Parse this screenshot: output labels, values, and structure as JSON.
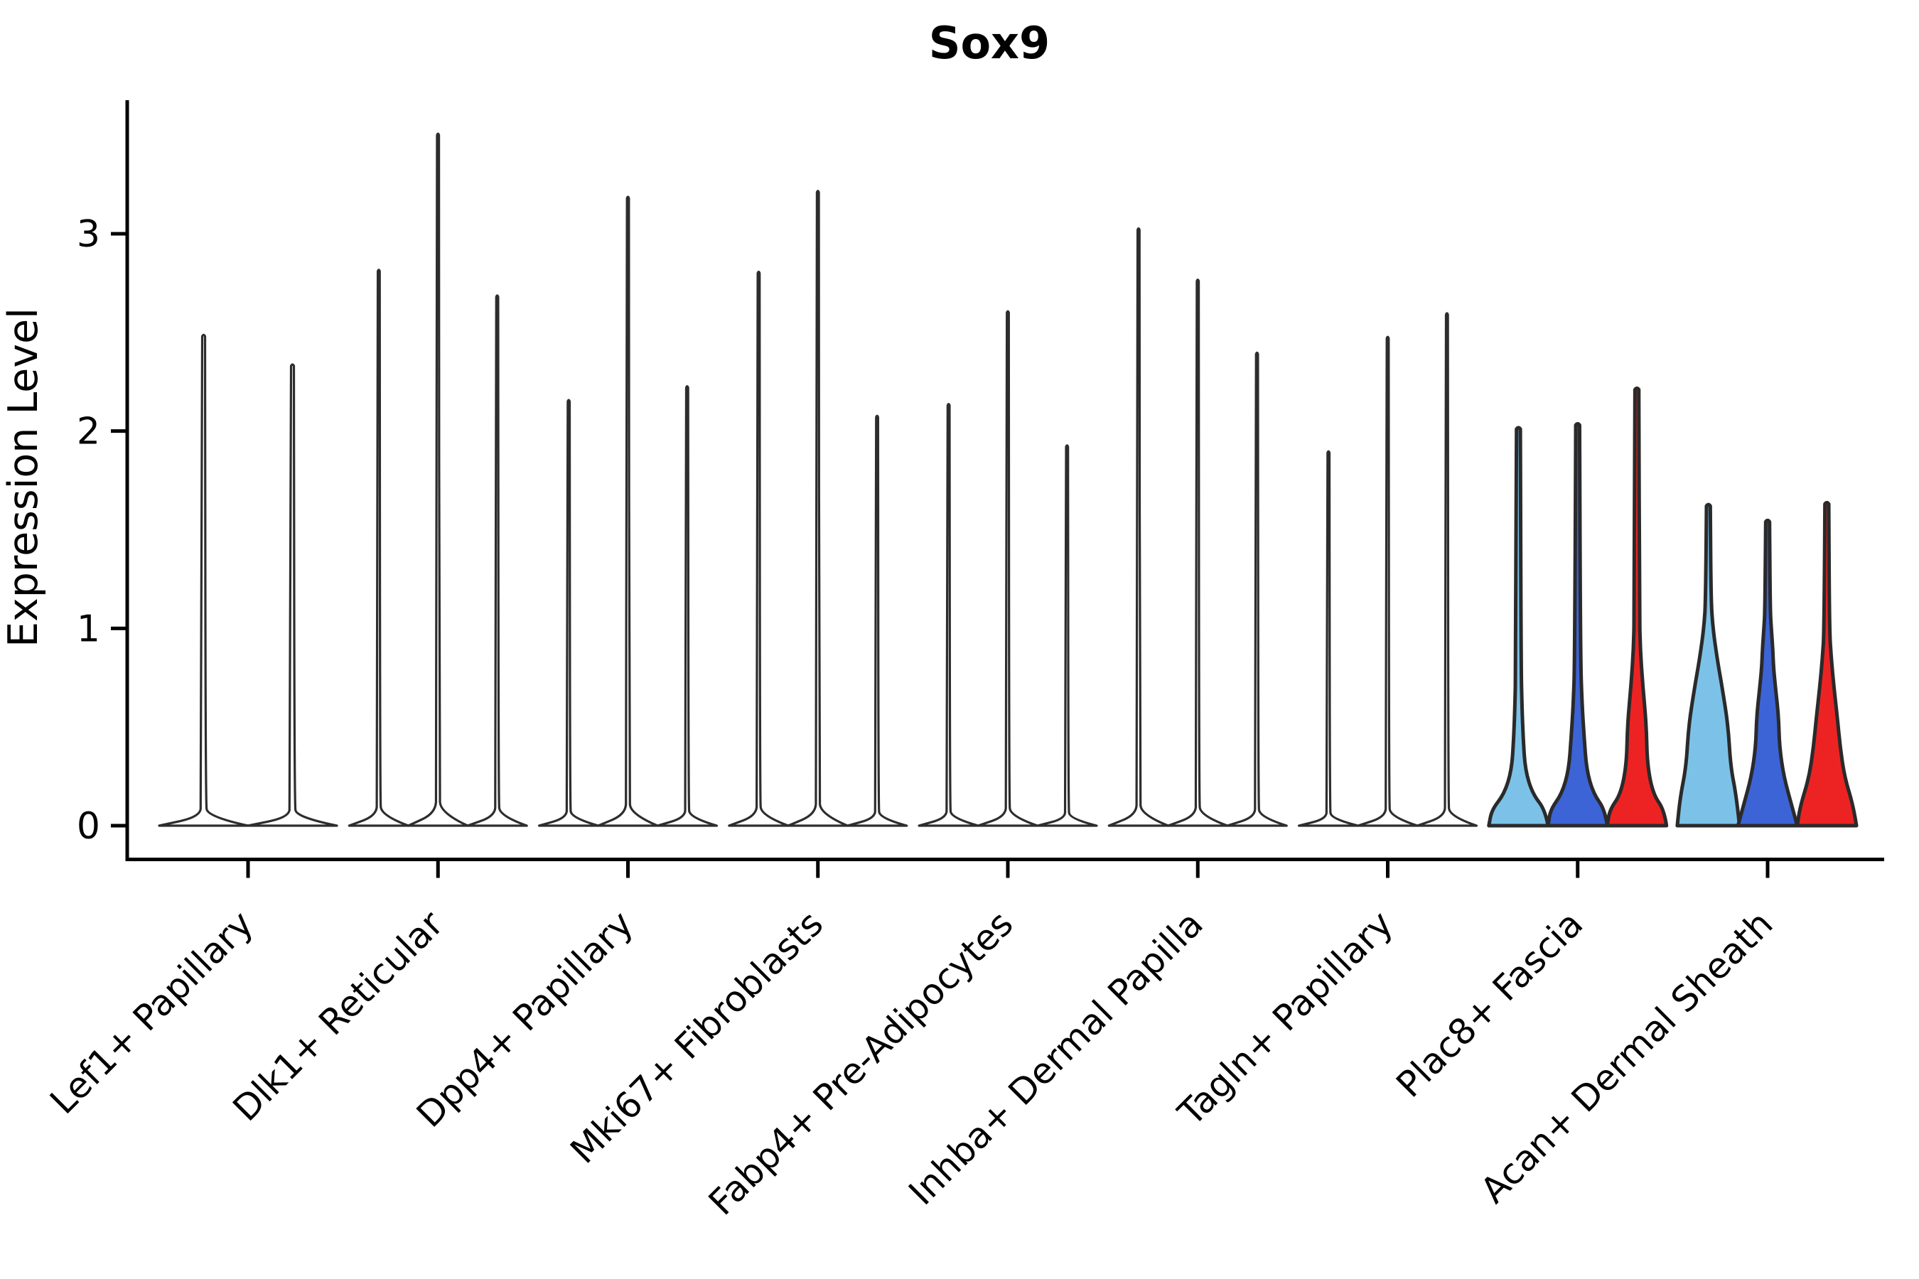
{
  "chart_data": {
    "type": "violin",
    "title": "Sox9",
    "xlabel": "",
    "ylabel": "Expression Level",
    "ylim": [
      0,
      3.68
    ],
    "yticks": [
      0,
      1,
      2,
      3
    ],
    "grid": false,
    "legend_position": "none",
    "xtick_rotation": 45,
    "outline_color": "#2A2A2A",
    "spike_color": "#2D2D2D",
    "axis_color": "#000000",
    "split_colors": [
      "#7CC2E8",
      "#3C64D7",
      "#ED2323"
    ],
    "categories": [
      {
        "label": "Lef1+ Papillary",
        "violins": [
          {
            "max": 2.48,
            "fill": "#ffffff"
          },
          {
            "max": 2.33,
            "fill": "#ffffff"
          }
        ]
      },
      {
        "label": "Dlk1+ Reticular",
        "violins": [
          {
            "max": 2.81,
            "fill": "#ffffff"
          },
          {
            "max": 3.5,
            "fill": "#ffffff"
          },
          {
            "max": 2.68,
            "fill": "#ffffff"
          }
        ]
      },
      {
        "label": "Dpp4+ Papillary",
        "violins": [
          {
            "max": 2.15,
            "fill": "#ffffff"
          },
          {
            "max": 3.18,
            "fill": "#ffffff"
          },
          {
            "max": 2.22,
            "fill": "#ffffff"
          }
        ]
      },
      {
        "label": "Mki67+ Fibroblasts",
        "violins": [
          {
            "max": 2.8,
            "fill": "#ffffff"
          },
          {
            "max": 3.21,
            "fill": "#ffffff"
          },
          {
            "max": 2.07,
            "fill": "#ffffff"
          }
        ]
      },
      {
        "label": "Fabp4+ Pre-Adipocytes",
        "violins": [
          {
            "max": 2.13,
            "fill": "#ffffff"
          },
          {
            "max": 2.6,
            "fill": "#ffffff"
          },
          {
            "max": 1.92,
            "fill": "#ffffff"
          }
        ]
      },
      {
        "label": "Inhba+ Dermal Papilla",
        "violins": [
          {
            "max": 3.02,
            "fill": "#ffffff"
          },
          {
            "max": 2.76,
            "fill": "#ffffff"
          },
          {
            "max": 2.39,
            "fill": "#ffffff"
          }
        ]
      },
      {
        "label": "Tagln+ Papillary",
        "violins": [
          {
            "max": 1.89,
            "fill": "#ffffff"
          },
          {
            "max": 2.47,
            "fill": "#ffffff"
          },
          {
            "max": 2.59,
            "fill": "#ffffff"
          }
        ]
      },
      {
        "label": "Plac8+ Fascia",
        "violins": [
          {
            "max": 2.01,
            "fill": "#7CC2E8",
            "profile": [
              [
                0,
                1
              ],
              [
                0.04,
                0.9
              ],
              [
                0.08,
                0.48
              ],
              [
                0.14,
                0.23
              ],
              [
                0.22,
                0.16
              ],
              [
                0.3,
                0.12
              ],
              [
                0.4,
                0.09
              ],
              [
                1,
                0.065
              ]
            ]
          },
          {
            "max": 2.03,
            "fill": "#3C64D7",
            "profile": [
              [
                0,
                1
              ],
              [
                0.04,
                0.92
              ],
              [
                0.08,
                0.53
              ],
              [
                0.14,
                0.3
              ],
              [
                0.22,
                0.22
              ],
              [
                0.3,
                0.15
              ],
              [
                0.42,
                0.095
              ],
              [
                1,
                0.065
              ]
            ]
          },
          {
            "max": 2.21,
            "fill": "#ED2323",
            "profile": [
              [
                0,
                1
              ],
              [
                0.036,
                0.92
              ],
              [
                0.072,
                0.55
              ],
              [
                0.14,
                0.35
              ],
              [
                0.23,
                0.32
              ],
              [
                0.32,
                0.2
              ],
              [
                0.41,
                0.11
              ],
              [
                0.5,
                0.088
              ],
              [
                1,
                0.065
              ]
            ]
          }
        ]
      },
      {
        "label": "Acan+ Dermal Sheath",
        "violins": [
          {
            "max": 1.62,
            "fill": "#7CC2E8",
            "profile": [
              [
                0,
                1.05
              ],
              [
                0.09,
                0.95
              ],
              [
                0.185,
                0.75
              ],
              [
                0.31,
                0.67
              ],
              [
                0.43,
                0.47
              ],
              [
                0.52,
                0.3
              ],
              [
                0.62,
                0.15
              ],
              [
                0.71,
                0.088
              ],
              [
                1,
                0.065
              ]
            ]
          },
          {
            "max": 1.54,
            "fill": "#3C64D7",
            "profile": [
              [
                0,
                1
              ],
              [
                0.065,
                0.82
              ],
              [
                0.16,
                0.55
              ],
              [
                0.26,
                0.4
              ],
              [
                0.36,
                0.37
              ],
              [
                0.45,
                0.27
              ],
              [
                0.52,
                0.2
              ],
              [
                0.58,
                0.175
              ],
              [
                0.65,
                0.125
              ],
              [
                0.71,
                0.088
              ],
              [
                1,
                0.065
              ]
            ]
          },
          {
            "max": 1.63,
            "fill": "#ED2323",
            "profile": [
              [
                0,
                1
              ],
              [
                0.06,
                0.9
              ],
              [
                0.15,
                0.6
              ],
              [
                0.245,
                0.45
              ],
              [
                0.34,
                0.35
              ],
              [
                0.43,
                0.24
              ],
              [
                0.52,
                0.15
              ],
              [
                0.61,
                0.088
              ],
              [
                1,
                0.065
              ]
            ]
          }
        ]
      }
    ]
  }
}
